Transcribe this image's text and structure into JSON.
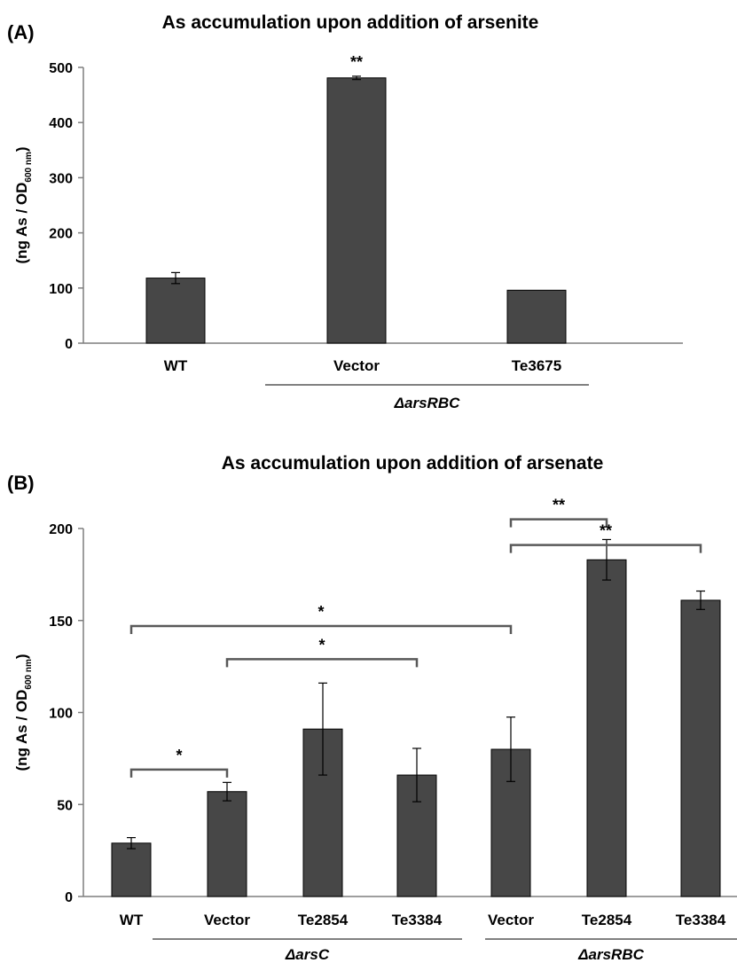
{
  "chart_data": [
    {
      "panel_label": "(A)",
      "type": "bar",
      "title": "As accumulation upon addition of arsenite",
      "ylabel_main": "(ng As / OD",
      "ylabel_sub": "600 nm",
      "ylabel_end": ")",
      "ylim": [
        0,
        500
      ],
      "yticks": [
        0,
        100,
        200,
        300,
        400,
        500
      ],
      "categories": [
        "WT",
        "Vector",
        "Te3675"
      ],
      "values": [
        118,
        481,
        96
      ],
      "errors": [
        10,
        3,
        0
      ],
      "bar_color": "#474747",
      "groups": [
        {
          "label": "ΔarsRBC",
          "from": 1,
          "to": 2
        }
      ],
      "bar_labels": [
        "",
        "**",
        ""
      ],
      "brackets": []
    },
    {
      "panel_label": "(B)",
      "type": "bar",
      "title": "As accumulation upon addition of arsenate",
      "ylabel_main": "(ng As / OD",
      "ylabel_sub": "600 nm",
      "ylabel_end": ")",
      "ylim": [
        0,
        200
      ],
      "yticks": [
        0,
        50,
        100,
        150,
        200
      ],
      "categories": [
        "WT",
        "Vector",
        "Te2854",
        "Te3384",
        "Vector",
        "Te2854",
        "Te3384"
      ],
      "values": [
        29,
        57,
        91,
        66,
        80,
        183,
        161
      ],
      "errors": [
        3,
        5,
        25,
        14.5,
        17.5,
        11,
        5
      ],
      "bar_color": "#474747",
      "groups": [
        {
          "label": "ΔarsC",
          "from": 1,
          "to": 3
        },
        {
          "label": "ΔarsRBC",
          "from": 4,
          "to": 6
        }
      ],
      "bar_labels": [
        "",
        "",
        "",
        "",
        "",
        "",
        ""
      ],
      "brackets": [
        {
          "from": 0,
          "to": 1,
          "label": "*",
          "y": 69
        },
        {
          "from": 1,
          "to": 3,
          "label": "*",
          "y": 129
        },
        {
          "from": 0,
          "to": 4,
          "label": "*",
          "y": 147
        },
        {
          "from": 4,
          "to": 5,
          "label": "**",
          "y": 205
        },
        {
          "from": 4,
          "to": 6,
          "label": "**",
          "y": 191
        }
      ]
    }
  ]
}
